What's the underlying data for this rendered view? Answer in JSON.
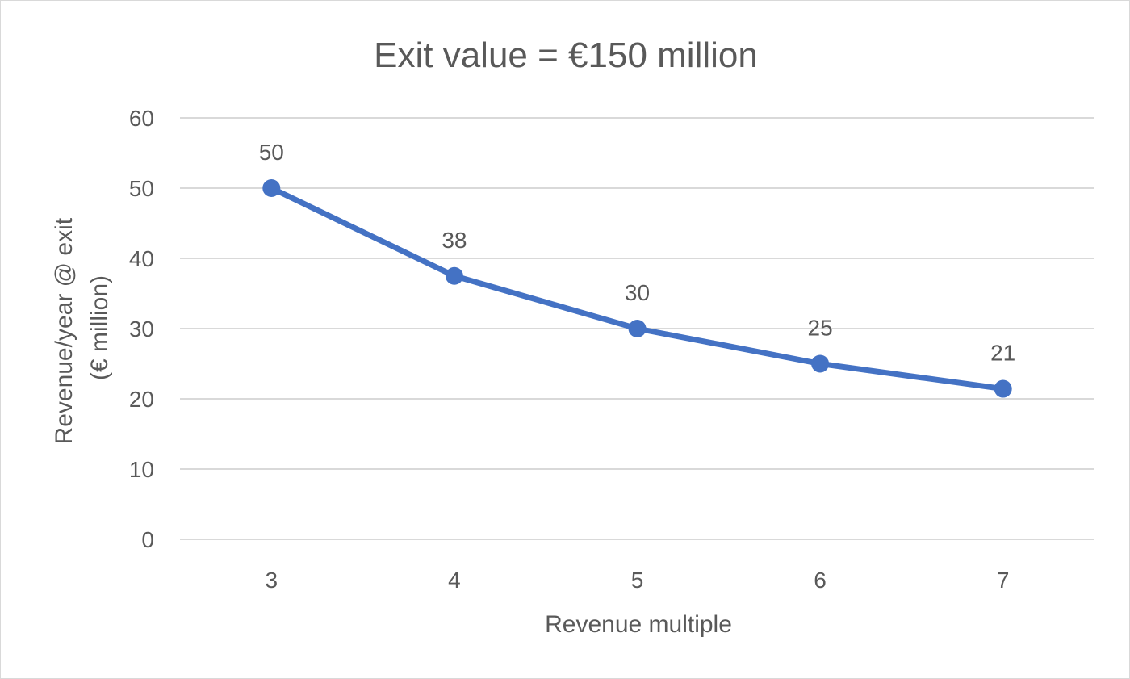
{
  "chart_data": {
    "type": "line",
    "title": "Exit value = €150 million",
    "xlabel": "Revenue multiple",
    "ylabel_lines": [
      "Revenue/year @ exit",
      "(€ million)"
    ],
    "x": [
      3,
      4,
      5,
      6,
      7
    ],
    "x_tick_labels": [
      "3",
      "4",
      "5",
      "6",
      "7"
    ],
    "y_ticks": [
      0,
      10,
      20,
      30,
      40,
      50,
      60
    ],
    "ylim": [
      0,
      60
    ],
    "grid": true,
    "legend": "none",
    "series": [
      {
        "values": [
          50,
          37.5,
          30,
          25,
          21.43
        ],
        "data_labels": [
          "50",
          "38",
          "30",
          "25",
          "21"
        ],
        "color": "#4472c4"
      }
    ],
    "colors": {
      "gridline": "#d9d9d9",
      "text": "#595959",
      "series": "#4472c4"
    }
  }
}
